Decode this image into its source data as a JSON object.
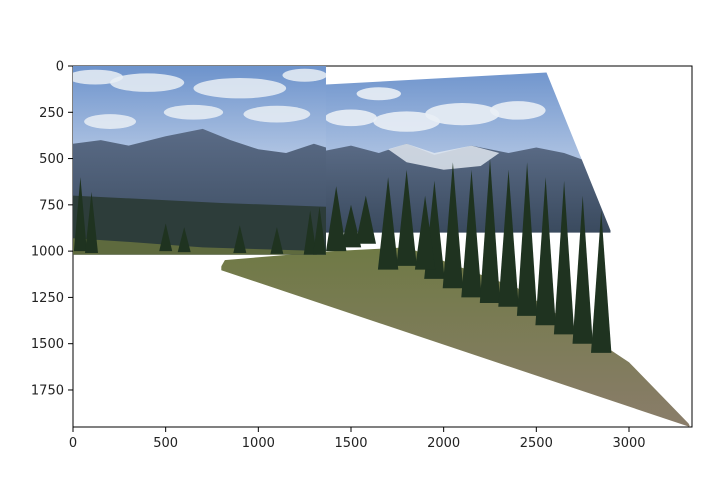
{
  "chart_data": {
    "type": "image",
    "title": "",
    "xlabel": "",
    "ylabel": "",
    "xlim": [
      0,
      3340
    ],
    "ylim": [
      1950,
      0
    ],
    "x_ticks": [
      0,
      500,
      1000,
      1500,
      2000,
      2500,
      3000
    ],
    "y_ticks": [
      0,
      250,
      500,
      750,
      1000,
      1250,
      1500,
      1750
    ],
    "x_tick_labels": [
      "0",
      "500",
      "1000",
      "1500",
      "2000",
      "2500",
      "3000"
    ],
    "y_tick_labels": [
      "0",
      "250",
      "500",
      "750",
      "1000",
      "1250",
      "1500",
      "1750"
    ],
    "content": "stitched mountain panorama (warped image mosaic)",
    "left_image_corners": [
      [
        0,
        0
      ],
      [
        1365,
        0
      ],
      [
        1365,
        1020
      ],
      [
        0,
        1020
      ]
    ],
    "warped_image_corners": [
      [
        1365,
        100
      ],
      [
        2555,
        35
      ],
      [
        3330,
        1950
      ],
      [
        790,
        1100
      ]
    ],
    "colors": {
      "sky": "#7fa3d6",
      "cloud": "#e9eef5",
      "mountain": "#4d5f7a",
      "forest": "#1f3320",
      "meadow": "#7c7a4e"
    }
  }
}
